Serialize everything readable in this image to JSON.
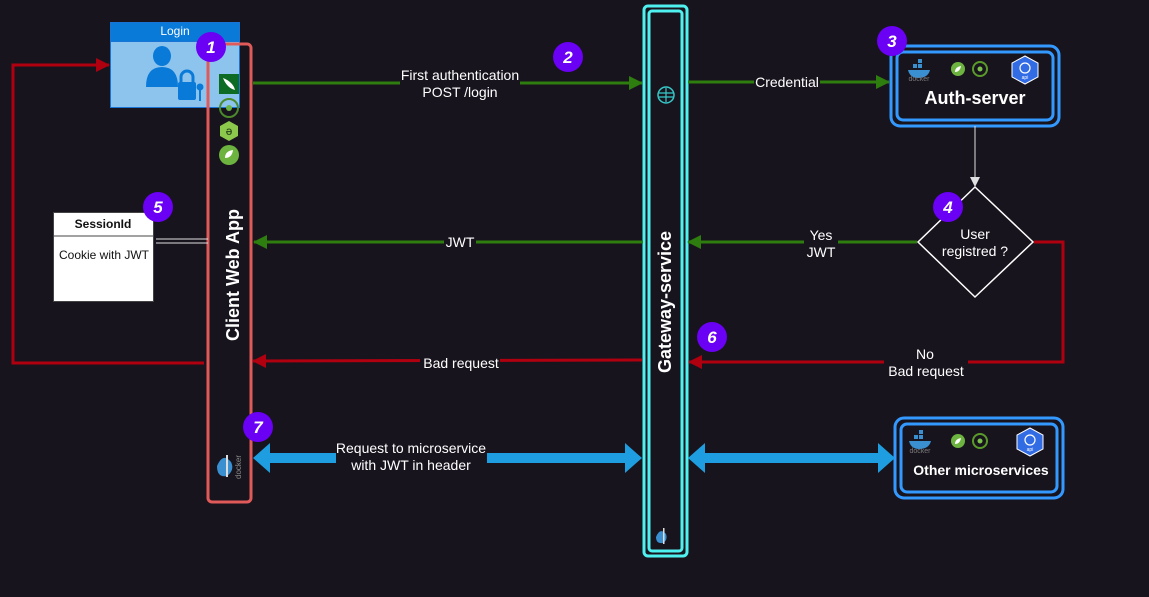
{
  "login": {
    "title": "Login"
  },
  "client": {
    "title": "Client Web App"
  },
  "gateway": {
    "title": "Gateway-service"
  },
  "auth": {
    "title": "Auth-server",
    "docker_text": "docker",
    "k8s_text": "api"
  },
  "other": {
    "title": "Other microservices",
    "docker_text": "docker",
    "k8s_text": "api"
  },
  "session": {
    "header": "SessionId",
    "body": "Cookie with JWT"
  },
  "decision": {
    "line1": "User",
    "line2": "registred ?"
  },
  "arrows": {
    "auth_request": {
      "line1": "First authentication",
      "line2": "POST /login"
    },
    "credential": "Credential",
    "jwt": "JWT",
    "yes": {
      "line1": "Yes",
      "line2": "JWT"
    },
    "bad_request": "Bad request",
    "no": {
      "line1": "No",
      "line2": "Bad request"
    },
    "microservice": {
      "line1": "Request to microservice",
      "line2": "with JWT in header"
    }
  },
  "steps": [
    "1",
    "2",
    "3",
    "4",
    "5",
    "6",
    "7"
  ],
  "colors": {
    "background": "#18141d",
    "green_arrow": "#2e7d0f",
    "red_arrow": "#b00010",
    "blue_arrow": "#1e9ee0",
    "step_badge": "#6a00f4",
    "client_border": "#e05a5a",
    "gateway_border": "#4ff0f0",
    "service_border": "#3399ff"
  }
}
